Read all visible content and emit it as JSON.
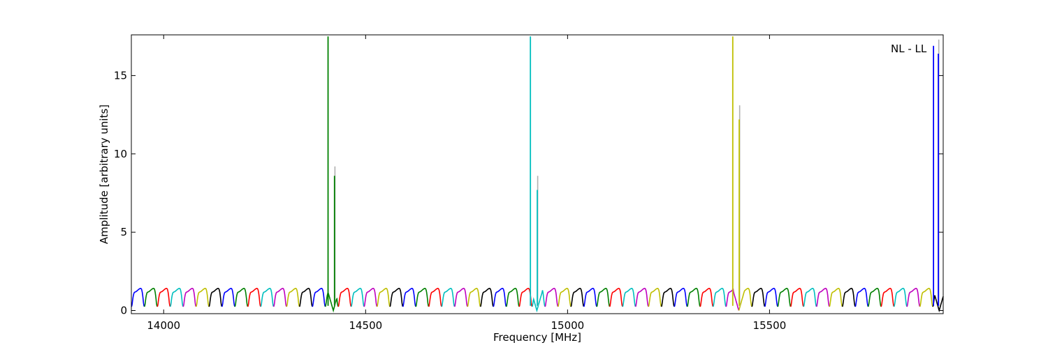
{
  "chart_data": {
    "type": "line",
    "title": "",
    "annotation": "NL - LL",
    "xlabel": "Frequency [MHz]",
    "ylabel": "Amplitude [arbitrary units]",
    "xlim": [
      13920,
      15930
    ],
    "ylim": [
      -0.2,
      17.6
    ],
    "x_ticks": [
      14000,
      14500,
      15000,
      15500
    ],
    "y_ticks": [
      0,
      5,
      10,
      15
    ],
    "x_tick_labels": [
      "14000",
      "14500",
      "15000",
      "15500"
    ],
    "y_tick_labels": [
      "0",
      "5",
      "10",
      "15"
    ],
    "grid": false,
    "legend": "none",
    "baseline_segment_width_mhz": 32,
    "baseline_pattern": {
      "shape": "comb-dips",
      "high": 1.3,
      "low": 0.25,
      "dip_spacing_mhz": 32
    },
    "color_cycle": [
      "#0000ff",
      "#008000",
      "#ff0000",
      "#00bfbf",
      "#bf00bf",
      "#bfbf00",
      "#000000"
    ],
    "spikes": [
      {
        "x": 14407,
        "y": 17.5,
        "color": "#008000"
      },
      {
        "x": 14423,
        "y": 8.6,
        "color": "#008000",
        "ghost": 9.2
      },
      {
        "x": 14908,
        "y": 17.5,
        "color": "#00bfbf"
      },
      {
        "x": 14925,
        "y": 7.7,
        "color": "#00bfbf",
        "ghost": 8.6
      },
      {
        "x": 15409,
        "y": 17.5,
        "color": "#bfbf00"
      },
      {
        "x": 15425,
        "y": 12.2,
        "color": "#bfbf00",
        "ghost": 13.1
      },
      {
        "x": 15906,
        "y": 16.9,
        "color": "#0000ff"
      },
      {
        "x": 15918,
        "y": 16.4,
        "color": "#0000ff",
        "ghost": 17.3
      }
    ],
    "deep_dips": [
      14420,
      14924,
      15424,
      15920
    ]
  }
}
